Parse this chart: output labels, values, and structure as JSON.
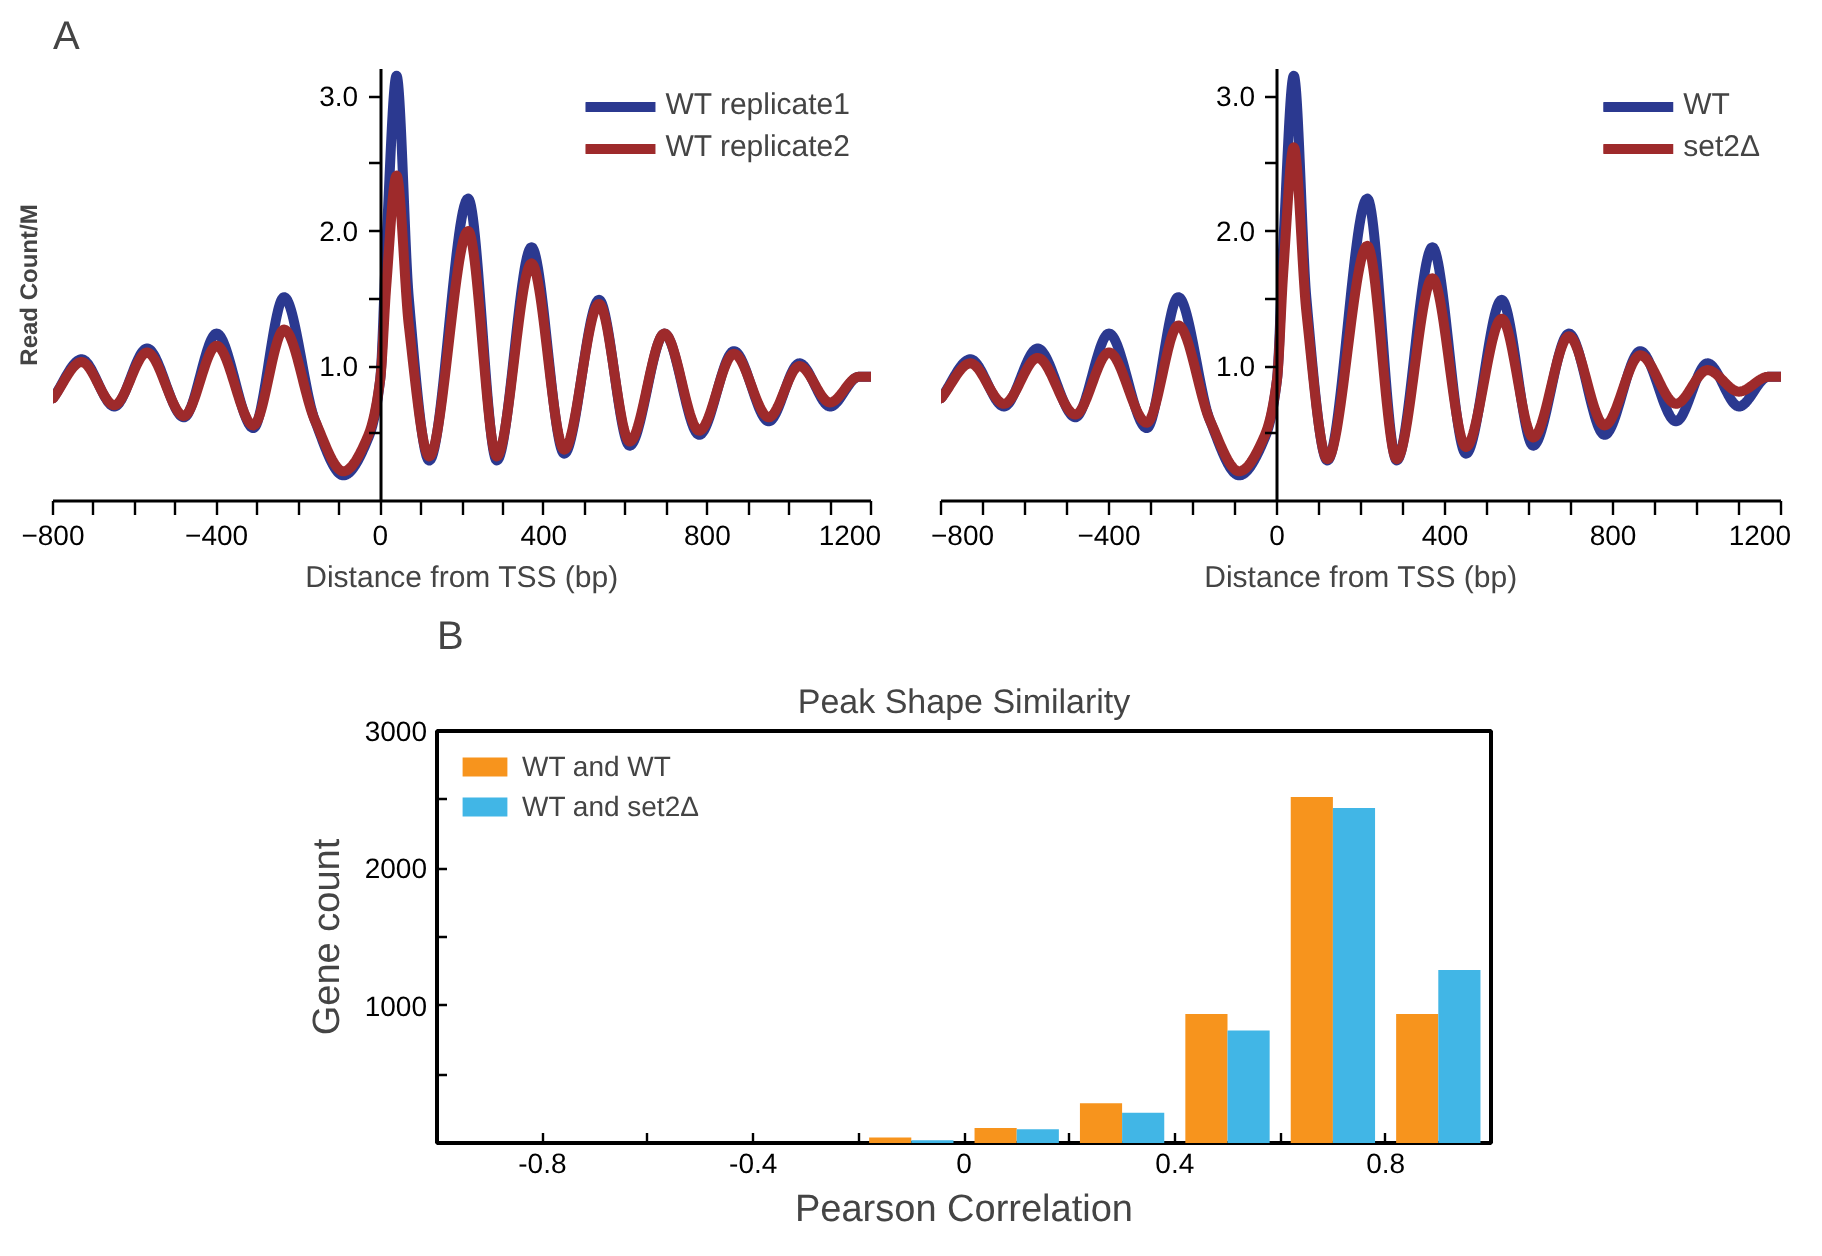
{
  "chart_data": [
    {
      "type": "line",
      "annotations": [
        "A"
      ],
      "xlabel": "Distance from TSS (bp)",
      "ylabel": "Read Count/M",
      "x": [
        -800,
        -730,
        -650,
        -570,
        -480,
        -400,
        -310,
        -235,
        -160,
        -90,
        -30,
        0,
        15,
        40,
        70,
        120,
        215,
        285,
        370,
        450,
        535,
        610,
        695,
        780,
        865,
        950,
        1025,
        1100,
        1170,
        1200
      ],
      "series": [
        {
          "name": "WT replicate1",
          "color": "#2b3990",
          "values": [
            0.76,
            1.05,
            0.7,
            1.13,
            0.62,
            1.24,
            0.54,
            1.51,
            0.6,
            0.19,
            0.46,
            0.9,
            1.9,
            3.15,
            1.5,
            0.3,
            2.24,
            0.3,
            1.88,
            0.35,
            1.49,
            0.41,
            1.24,
            0.49,
            1.11,
            0.59,
            1.02,
            0.7,
            0.92,
            0.92
          ]
        },
        {
          "name": "WT replicate2",
          "color": "#9e2a2b",
          "values": [
            0.76,
            1.03,
            0.71,
            1.1,
            0.63,
            1.15,
            0.56,
            1.27,
            0.6,
            0.22,
            0.48,
            0.9,
            1.6,
            2.41,
            1.3,
            0.33,
            2.0,
            0.33,
            1.76,
            0.38,
            1.46,
            0.44,
            1.24,
            0.52,
            1.09,
            0.62,
            1.0,
            0.73,
            0.92,
            0.92
          ]
        }
      ],
      "xlim": [
        -800,
        1200
      ],
      "ylim": [
        0,
        3.2
      ],
      "xticks": [
        {
          "value": -800,
          "label": "−800"
        },
        {
          "value": -700,
          "label": null
        },
        {
          "value": -600,
          "label": null
        },
        {
          "value": -500,
          "label": null
        },
        {
          "value": -400,
          "label": "−400"
        },
        {
          "value": -300,
          "label": null
        },
        {
          "value": -200,
          "label": null
        },
        {
          "value": -100,
          "label": null
        },
        0,
        {
          "value": 100,
          "label": null
        },
        {
          "value": 200,
          "label": null
        },
        {
          "value": 300,
          "label": null
        },
        400,
        {
          "value": 500,
          "label": null
        },
        {
          "value": 600,
          "label": null
        },
        {
          "value": 700,
          "label": null
        },
        800,
        {
          "value": 900,
          "label": null
        },
        {
          "value": 1000,
          "label": null
        },
        {
          "value": 1100,
          "label": null
        },
        1200
      ],
      "yticks": [
        {
          "value": 0.5,
          "label": null
        },
        {
          "value": 1,
          "label": "1.0"
        },
        {
          "value": 1.5,
          "label": null
        },
        {
          "value": 2,
          "label": "2.0"
        },
        {
          "value": 2.5,
          "label": null
        },
        {
          "value": 3,
          "label": "3.0"
        }
      ],
      "legend": "top right",
      "line_style": "solid"
    },
    {
      "type": "line",
      "xlabel": "Distance from TSS (bp)",
      "x": [
        -800,
        -730,
        -650,
        -570,
        -480,
        -400,
        -310,
        -235,
        -160,
        -90,
        -30,
        0,
        15,
        40,
        70,
        120,
        215,
        285,
        370,
        450,
        535,
        610,
        695,
        780,
        865,
        950,
        1025,
        1100,
        1170,
        1200
      ],
      "series": [
        {
          "name": "WT",
          "color": "#2b3990",
          "values": [
            0.76,
            1.05,
            0.7,
            1.13,
            0.62,
            1.24,
            0.54,
            1.51,
            0.6,
            0.19,
            0.46,
            0.9,
            1.9,
            3.15,
            1.5,
            0.3,
            2.24,
            0.3,
            1.88,
            0.35,
            1.49,
            0.41,
            1.24,
            0.49,
            1.11,
            0.59,
            1.02,
            0.7,
            0.92,
            0.92
          ]
        },
        {
          "name": "set2Δ",
          "color": "#9e2a2b",
          "values": [
            0.76,
            1.02,
            0.72,
            1.06,
            0.64,
            1.1,
            0.58,
            1.3,
            0.6,
            0.22,
            0.48,
            0.9,
            1.7,
            2.62,
            1.4,
            0.31,
            1.89,
            0.31,
            1.65,
            0.4,
            1.35,
            0.47,
            1.22,
            0.56,
            1.08,
            0.72,
            0.97,
            0.81,
            0.92,
            0.92
          ]
        }
      ],
      "xlim": [
        -800,
        1200
      ],
      "ylim": [
        0,
        3.2
      ],
      "xticks": [
        {
          "value": -800,
          "label": "−800"
        },
        {
          "value": -700,
          "label": null
        },
        {
          "value": -600,
          "label": null
        },
        {
          "value": -500,
          "label": null
        },
        {
          "value": -400,
          "label": "−400"
        },
        {
          "value": -300,
          "label": null
        },
        {
          "value": -200,
          "label": null
        },
        {
          "value": -100,
          "label": null
        },
        0,
        {
          "value": 100,
          "label": null
        },
        {
          "value": 200,
          "label": null
        },
        {
          "value": 300,
          "label": null
        },
        400,
        {
          "value": 500,
          "label": null
        },
        {
          "value": 600,
          "label": null
        },
        {
          "value": 700,
          "label": null
        },
        800,
        {
          "value": 900,
          "label": null
        },
        {
          "value": 1000,
          "label": null
        },
        {
          "value": 1100,
          "label": null
        },
        1200
      ],
      "yticks": [
        {
          "value": 0.5,
          "label": null
        },
        {
          "value": 1,
          "label": "1.0"
        },
        {
          "value": 1.5,
          "label": null
        },
        {
          "value": 2,
          "label": "2.0"
        },
        {
          "value": 2.5,
          "label": null
        },
        {
          "value": 3,
          "label": "3.0"
        }
      ],
      "legend": "top right",
      "line_style": "solid"
    },
    {
      "type": "bar",
      "annotations": [
        "B"
      ],
      "title": "Peak Shape Similarity",
      "xlabel": "Pearson Correlation",
      "ylabel": "Gene count",
      "x": [
        -0.1,
        0.1,
        0.3,
        0.5,
        0.7,
        0.9
      ],
      "series": [
        {
          "name": "WT and WT",
          "color": "#f7941d",
          "values": [
            40,
            110,
            290,
            940,
            2520,
            940
          ]
        },
        {
          "name": "WT and set2Δ",
          "color": "#41b6e6",
          "values": [
            20,
            100,
            220,
            820,
            2440,
            1260
          ]
        }
      ],
      "xlim": [
        -1,
        1
      ],
      "ylim": [
        0,
        3000
      ],
      "xticks": [
        {
          "value": -0.8,
          "label": "-0.8"
        },
        {
          "value": -0.6,
          "label": null
        },
        {
          "value": -0.4,
          "label": "-0.4"
        },
        {
          "value": -0.2,
          "label": null
        },
        0,
        {
          "value": 0.2,
          "label": null
        },
        0.4,
        {
          "value": 0.6,
          "label": null
        },
        0.8
      ],
      "yticks": [
        {
          "value": 500,
          "label": null
        },
        1000,
        {
          "value": 1500,
          "label": null
        },
        2000,
        {
          "value": 2500,
          "label": null
        },
        3000
      ],
      "legend": "top left"
    }
  ]
}
